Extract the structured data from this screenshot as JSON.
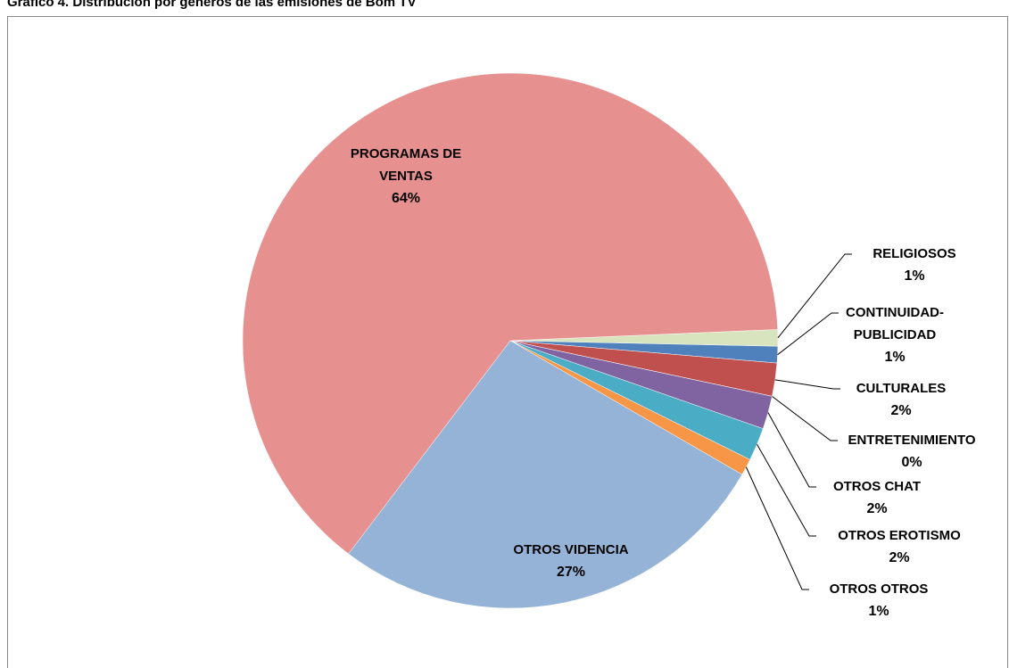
{
  "chart_data": {
    "type": "pie",
    "title": "Gráfico 4. Distribución por géneros de las emisiones de Bom TV",
    "categories": [
      "RELIGIOSOS",
      "CONTINUIDAD-PUBLICIDAD",
      "CULTURALES",
      "ENTRETENIMIENTO",
      "OTROS CHAT",
      "OTROS EROTISMO",
      "OTROS OTROS",
      "OTROS VIDENCIA",
      "PROGRAMAS DE VENTAS"
    ],
    "values": [
      1,
      1,
      2,
      0,
      2,
      2,
      1,
      27,
      64
    ],
    "value_labels": [
      "1%",
      "1%",
      "2%",
      "0%",
      "2%",
      "2%",
      "1%",
      "27%",
      "64%"
    ],
    "colors": [
      "#d7e4bd",
      "#4f81bd",
      "#c0504d",
      "#9bbb59",
      "#8064a2",
      "#4bacc6",
      "#f79646",
      "#95b3d7",
      "#e6908f"
    ]
  }
}
